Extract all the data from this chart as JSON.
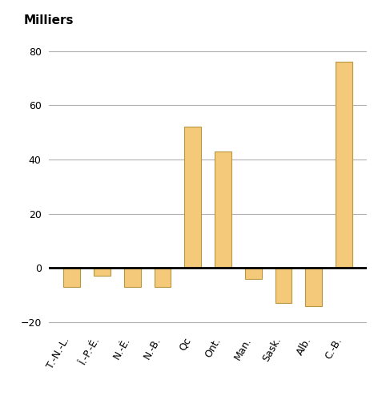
{
  "categories": [
    "T.-N.-L.",
    "Î.-P.-É.",
    "N.-É.",
    "N.-B.",
    "Qc",
    "Ont.",
    "Man.",
    "Sask.",
    "Alb.",
    "C.-B."
  ],
  "values": [
    -7,
    -3,
    -7,
    -7,
    52,
    43,
    -4,
    -13,
    -14,
    76
  ],
  "bar_color": "#F5C97A",
  "bar_edge_color": "#B8963E",
  "ylabel": "Milliers",
  "ylim": [
    -22,
    88
  ],
  "yticks": [
    -20,
    0,
    20,
    40,
    60,
    80
  ],
  "background_color": "#ffffff",
  "grid_color": "#b0b0b0",
  "zero_line_color": "#000000",
  "tick_label_fontsize": 9,
  "ylabel_fontsize": 11,
  "bar_width": 0.55
}
